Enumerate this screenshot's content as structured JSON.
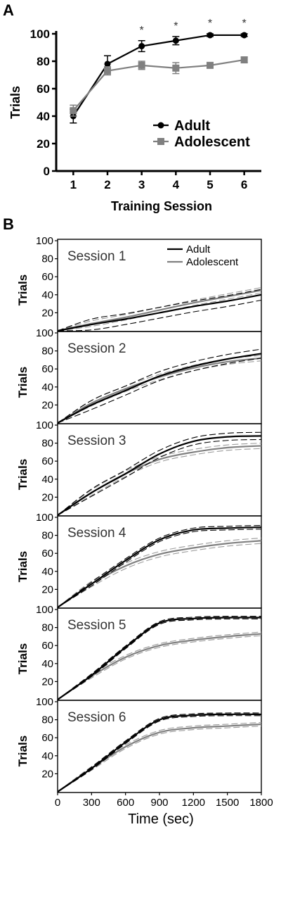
{
  "panel_a_letter": "A",
  "panel_b_letter": "B",
  "colors": {
    "adult": "#000000",
    "adolescent": "#808080",
    "adult_dash": "#000000",
    "adolescent_dash": "#9a9a9a"
  },
  "chart_data": [
    {
      "type": "line",
      "panel": "A",
      "x": [
        1,
        2,
        3,
        4,
        5,
        6
      ],
      "xlabel": "Training Session",
      "ylabel": "Trials",
      "xlim": [
        0.5,
        6.5
      ],
      "ylim": [
        0,
        100
      ],
      "x_ticks": [
        "1",
        "2",
        "3",
        "4",
        "5",
        "6"
      ],
      "y_ticks": [
        "0",
        "20",
        "40",
        "60",
        "80",
        "100"
      ],
      "series": [
        {
          "name": "Adult",
          "marker": "circle",
          "color": "#000000",
          "values": [
            40,
            78,
            91,
            95,
            99,
            99
          ],
          "error": [
            5,
            6,
            4,
            3,
            1,
            1
          ]
        },
        {
          "name": "Adolescent",
          "marker": "square",
          "color": "#808080",
          "values": [
            44,
            73,
            77,
            75,
            77,
            81
          ],
          "error": [
            4,
            3,
            3,
            4,
            2,
            2
          ]
        }
      ],
      "significance": [
        {
          "x": 3,
          "label": "*"
        },
        {
          "x": 4,
          "label": "*"
        },
        {
          "x": 5,
          "label": "*"
        },
        {
          "x": 6,
          "label": "*"
        }
      ],
      "legend": [
        "Adult",
        "Adolescent"
      ],
      "legend_position": "right"
    },
    {
      "type": "line",
      "panel": "B",
      "xlabel": "Time (sec)",
      "ylabel": "Trials",
      "xlim": [
        0,
        1800
      ],
      "ylim": [
        0,
        100
      ],
      "x_ticks": [
        "0",
        "300",
        "600",
        "900",
        "1200",
        "1500",
        "1800"
      ],
      "y_ticks": [
        "20",
        "40",
        "60",
        "80",
        "100"
      ],
      "legend": [
        "Adult",
        "Adolescent"
      ],
      "legend_position": "top-right",
      "x": [
        0,
        300,
        600,
        900,
        1200,
        1500,
        1800
      ],
      "sessions": [
        {
          "label": "Session 1",
          "adult": {
            "mean": [
              0,
              7,
              13,
              20,
              27,
              33,
              40
            ],
            "err": 6
          },
          "adolescent": {
            "mean": [
              0,
              8,
              15,
              23,
              31,
              38,
              45
            ],
            "err": 3
          }
        },
        {
          "label": "Session 2",
          "adult": {
            "mean": [
              0,
              20,
              36,
              52,
              63,
              71,
              77
            ],
            "err": 5
          },
          "adolescent": {
            "mean": [
              0,
              22,
              38,
              51,
              61,
              68,
              72
            ],
            "err": 3
          }
        },
        {
          "label": "Session 3",
          "adult": {
            "mean": [
              0,
              25,
              46,
              68,
              82,
              87,
              88
            ],
            "err": 4
          },
          "adolescent": {
            "mean": [
              0,
              25,
              46,
              62,
              70,
              75,
              77
            ],
            "err": 3
          }
        },
        {
          "label": "Session 4",
          "adult": {
            "mean": [
              0,
              26,
              52,
              75,
              86,
              88,
              89
            ],
            "err": 2
          },
          "adolescent": {
            "mean": [
              0,
              26,
              46,
              59,
              66,
              71,
              74
            ],
            "err": 3
          }
        },
        {
          "label": "Session 5",
          "adult": {
            "mean": [
              0,
              27,
              58,
              85,
              90,
              91,
              91
            ],
            "err": 1.5
          },
          "adolescent": {
            "mean": [
              0,
              26,
              47,
              60,
              66,
              70,
              73
            ],
            "err": 2
          }
        },
        {
          "label": "Session 6",
          "adult": {
            "mean": [
              0,
              26,
              55,
              80,
              85,
              86,
              86
            ],
            "err": 1.5
          },
          "adolescent": {
            "mean": [
              0,
              26,
              50,
              66,
              71,
              73,
              75
            ],
            "err": 2
          }
        }
      ]
    }
  ]
}
